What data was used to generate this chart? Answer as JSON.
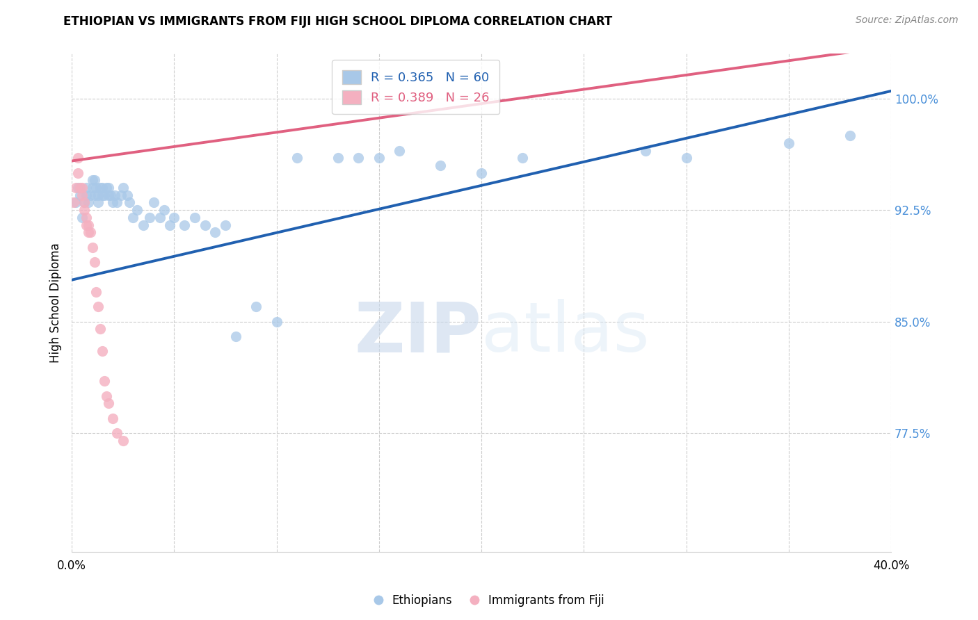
{
  "title": "ETHIOPIAN VS IMMIGRANTS FROM FIJI HIGH SCHOOL DIPLOMA CORRELATION CHART",
  "source": "Source: ZipAtlas.com",
  "xlabel_ethiopians": "Ethiopians",
  "xlabel_fiji": "Immigrants from Fiji",
  "ylabel": "High School Diploma",
  "xlim": [
    0.0,
    0.4
  ],
  "ylim": [
    0.695,
    1.03
  ],
  "xticks": [
    0.0,
    0.05,
    0.1,
    0.15,
    0.2,
    0.25,
    0.3,
    0.35,
    0.4
  ],
  "ytick_positions": [
    0.775,
    0.85,
    0.925,
    1.0
  ],
  "ytick_labels": [
    "77.5%",
    "85.0%",
    "92.5%",
    "100.0%"
  ],
  "R_blue": 0.365,
  "N_blue": 60,
  "R_pink": 0.389,
  "N_pink": 26,
  "blue_color": "#a8c8e8",
  "pink_color": "#f4b0c0",
  "trend_blue": "#2060b0",
  "trend_pink": "#e06080",
  "watermark_zip": "ZIP",
  "watermark_atlas": "atlas",
  "blue_scatter_x": [
    0.002,
    0.003,
    0.004,
    0.005,
    0.006,
    0.007,
    0.007,
    0.008,
    0.009,
    0.01,
    0.01,
    0.011,
    0.011,
    0.012,
    0.013,
    0.013,
    0.014,
    0.015,
    0.015,
    0.016,
    0.017,
    0.018,
    0.018,
    0.019,
    0.02,
    0.021,
    0.022,
    0.024,
    0.025,
    0.027,
    0.028,
    0.03,
    0.032,
    0.035,
    0.038,
    0.04,
    0.043,
    0.045,
    0.048,
    0.05,
    0.055,
    0.06,
    0.065,
    0.07,
    0.075,
    0.08,
    0.09,
    0.1,
    0.11,
    0.13,
    0.14,
    0.15,
    0.16,
    0.18,
    0.2,
    0.22,
    0.28,
    0.3,
    0.35,
    0.38
  ],
  "blue_scatter_y": [
    0.93,
    0.94,
    0.935,
    0.92,
    0.93,
    0.94,
    0.935,
    0.93,
    0.935,
    0.945,
    0.94,
    0.935,
    0.945,
    0.94,
    0.93,
    0.935,
    0.94,
    0.935,
    0.94,
    0.935,
    0.94,
    0.935,
    0.94,
    0.935,
    0.93,
    0.935,
    0.93,
    0.935,
    0.94,
    0.935,
    0.93,
    0.92,
    0.925,
    0.915,
    0.92,
    0.93,
    0.92,
    0.925,
    0.915,
    0.92,
    0.915,
    0.92,
    0.915,
    0.91,
    0.915,
    0.84,
    0.86,
    0.85,
    0.96,
    0.96,
    0.96,
    0.96,
    0.965,
    0.955,
    0.95,
    0.96,
    0.965,
    0.96,
    0.97,
    0.975
  ],
  "pink_scatter_x": [
    0.001,
    0.002,
    0.003,
    0.003,
    0.004,
    0.005,
    0.005,
    0.006,
    0.006,
    0.007,
    0.007,
    0.008,
    0.008,
    0.009,
    0.01,
    0.011,
    0.012,
    0.013,
    0.014,
    0.015,
    0.016,
    0.017,
    0.018,
    0.02,
    0.022,
    0.025
  ],
  "pink_scatter_y": [
    0.93,
    0.94,
    0.96,
    0.95,
    0.94,
    0.935,
    0.94,
    0.93,
    0.925,
    0.92,
    0.915,
    0.915,
    0.91,
    0.91,
    0.9,
    0.89,
    0.87,
    0.86,
    0.845,
    0.83,
    0.81,
    0.8,
    0.795,
    0.785,
    0.775,
    0.77
  ],
  "blue_trend_x0": 0.0,
  "blue_trend_x1": 0.4,
  "blue_trend_y0": 0.878,
  "blue_trend_y1": 1.005,
  "pink_trend_x0": 0.0,
  "pink_trend_x1": 0.4,
  "pink_trend_y0": 0.958,
  "pink_trend_y1": 1.035
}
